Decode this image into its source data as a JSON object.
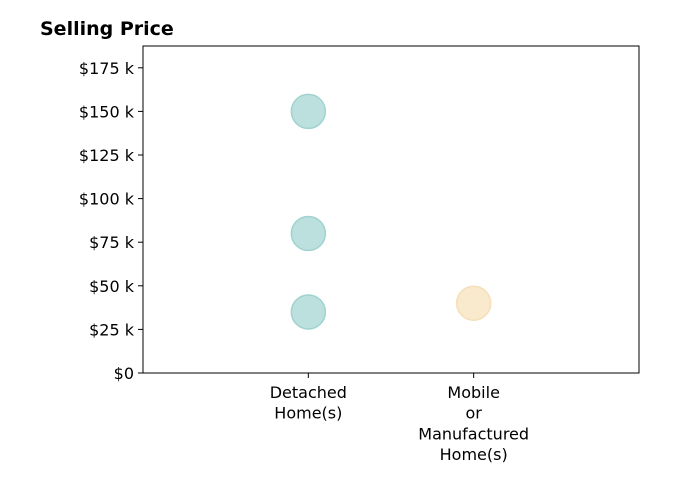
{
  "chart_data": {
    "type": "scatter",
    "title": "Selling Price",
    "xlabel": "",
    "ylabel": "",
    "categories": [
      [
        "Detached",
        "Home(s)"
      ],
      [
        "Mobile",
        "or",
        "Manufactured",
        "Home(s)"
      ]
    ],
    "xlim": [
      -1,
      2
    ],
    "ylim": [
      0,
      187500
    ],
    "y_ticks": [
      {
        "value": 0,
        "label": "$0"
      },
      {
        "value": 25000,
        "label": "$25 k"
      },
      {
        "value": 50000,
        "label": "$50 k"
      },
      {
        "value": 75000,
        "label": "$75 k"
      },
      {
        "value": 100000,
        "label": "$100 k"
      },
      {
        "value": 125000,
        "label": "$125 k"
      },
      {
        "value": 150000,
        "label": "$150 k"
      },
      {
        "value": 175000,
        "label": "$175 k"
      }
    ],
    "series": [
      {
        "category": 0,
        "color": "#9fd3cf",
        "points": [
          150000,
          80000,
          35000
        ]
      },
      {
        "category": 1,
        "color": "#f6dfb8",
        "points": [
          40000
        ]
      }
    ],
    "grid": false,
    "legend": "none"
  }
}
